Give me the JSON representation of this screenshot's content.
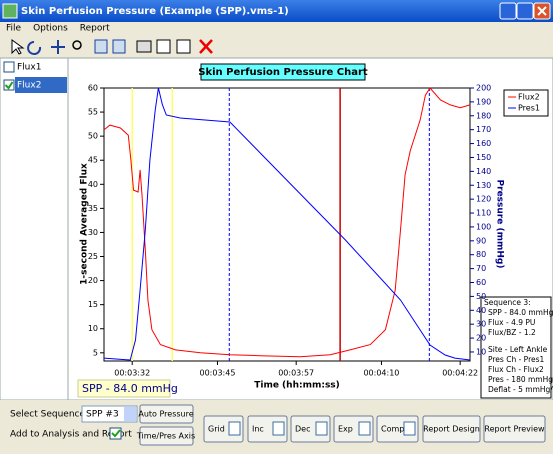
{
  "window": {
    "title": "Skin Perfusion Pressure (Example (SPP).vms-1)"
  },
  "menu": [
    "File",
    "Options",
    "Report"
  ],
  "sidebar": {
    "items": [
      {
        "label": "Flux1",
        "checked": false
      },
      {
        "label": "Flux2",
        "checked": true
      }
    ]
  },
  "chart_data": {
    "type": "line",
    "title": "Skin Perfusion Pressure Chart",
    "x_label": "Time (hh:mm:ss)",
    "y_label": "1-second Averaged Flux",
    "y2_label": "Pressure (mmHg)",
    "xlim": [
      207.7,
      263.5
    ],
    "ylim": [
      3.3,
      60
    ],
    "y2lim": [
      3.5,
      200
    ],
    "xticks": [
      {
        "value": 212,
        "label": "00:03:32"
      },
      {
        "value": 225,
        "label": "00:03:45"
      },
      {
        "value": 237,
        "label": "00:03:57"
      },
      {
        "value": 250,
        "label": "00:04:10"
      },
      {
        "value": 262,
        "label": "00:04:22"
      }
    ],
    "yticks": [
      5,
      10,
      15,
      20,
      25,
      30,
      35,
      40,
      45,
      50,
      55,
      60
    ],
    "y2ticks": [
      10,
      20,
      30,
      40,
      50,
      60,
      70,
      80,
      90,
      100,
      110,
      120,
      130,
      140,
      150,
      160,
      170,
      180,
      190,
      200
    ],
    "legend": "upper right",
    "series": [
      {
        "name": "Flux2",
        "color": "#ff0000",
        "x": [
          207.7,
          208.6,
          210.2,
          211.4,
          211.8,
          212.2,
          212.9,
          213.2,
          213.5,
          214.0,
          214.4,
          215.0,
          216.3,
          218.6,
          222.4,
          226.9,
          231.5,
          237.6,
          242.2,
          245.2,
          248.3,
          250.6,
          252.1,
          252.9,
          253.6,
          254.4,
          255.9,
          256.7,
          257.4,
          259.0,
          260.5,
          262.0,
          263.5
        ],
        "values": [
          51.3,
          52.3,
          51.7,
          50.2,
          45,
          38.8,
          38.4,
          43,
          37.8,
          26.4,
          16,
          9.8,
          6.7,
          5.6,
          5,
          4.6,
          4.4,
          4.2,
          4.6,
          5.6,
          6.7,
          9.8,
          18,
          30.5,
          42,
          47,
          53.4,
          58.5,
          60,
          57.5,
          56.5,
          55.9,
          56.5
        ]
      },
      {
        "name": "Pres1",
        "color": "#0000ff",
        "axis": "y2",
        "x": [
          207.7,
          211.7,
          212.5,
          213.2,
          214.0,
          214.7,
          215.5,
          216.0,
          216.6,
          217.2,
          219.3,
          226.9,
          244.5,
          252.9,
          257.4,
          259.7,
          261.2,
          263.5
        ],
        "values": [
          5.6,
          4.2,
          18.6,
          54.6,
          97.8,
          148,
          184,
          200,
          188,
          180.6,
          178.4,
          175.5,
          90.6,
          47.4,
          15,
          7.8,
          5.6,
          4.2
        ]
      }
    ],
    "vlines": [
      {
        "x": 212.0,
        "color": "#ffff66",
        "dash": false
      },
      {
        "x": 218.1,
        "color": "#ffff66",
        "dash": false
      },
      {
        "x": 226.8,
        "color": "#0000ff",
        "dash": true
      },
      {
        "x": 243.7,
        "color": "#cc0000",
        "dash": false
      },
      {
        "x": 257.3,
        "color": "#0000ff",
        "dash": true
      }
    ],
    "spp_label": "SPP - 84.0 mmHg"
  },
  "info_panel": [
    "Sequence 3:",
    "SPP - 84.0 mmHg",
    "Flux - 4.9 PU",
    "Flux/BZ - 1.2",
    "Site - Left Ankle",
    "Pres Ch - Pres1",
    "Flux Ch - Flux2",
    "Pres - 180 mmHg",
    "Deflat - 5 mmHg/s"
  ],
  "controls": {
    "select_label": "Select Sequence No",
    "select_value": "SPP #3",
    "auto_pressure": "Auto Pressure",
    "add_label": "Add to Analysis and Report",
    "time_pres": "Time/Pres Axis",
    "buttons": [
      "Grid",
      "Inc",
      "Dec",
      "Exp",
      "Comp",
      "Report Design",
      "Report Preview"
    ]
  }
}
